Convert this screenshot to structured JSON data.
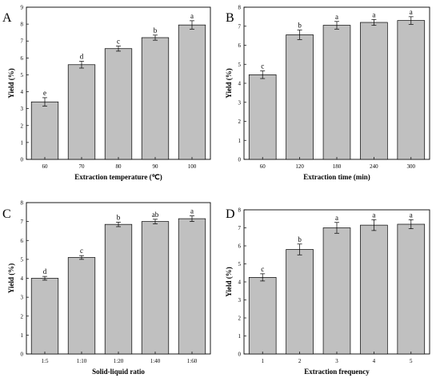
{
  "chart_data": [
    {
      "panel": "A",
      "type": "bar",
      "categories": [
        "60",
        "70",
        "80",
        "90",
        "100"
      ],
      "values": [
        3.4,
        5.6,
        6.55,
        7.2,
        7.95
      ],
      "errors": [
        0.25,
        0.2,
        0.15,
        0.15,
        0.25
      ],
      "significance": [
        "e",
        "d",
        "c",
        "b",
        "a"
      ],
      "xlabel": "Extraction temperature (℃)",
      "ylabel": "Yield (%)",
      "ylim": [
        0,
        9
      ],
      "yticks": [
        "0",
        "1",
        "2",
        "3",
        "4",
        "5",
        "6",
        "7",
        "8",
        "9"
      ],
      "grid": false
    },
    {
      "panel": "B",
      "type": "bar",
      "categories": [
        "60",
        "120",
        "180",
        "240",
        "300"
      ],
      "values": [
        4.45,
        6.55,
        7.05,
        7.2,
        7.3
      ],
      "errors": [
        0.2,
        0.25,
        0.2,
        0.15,
        0.2
      ],
      "significance": [
        "c",
        "b",
        "a",
        "a",
        "a"
      ],
      "xlabel": "Extraction time (min)",
      "ylabel": "Yield (%)",
      "ylim": [
        0,
        8
      ],
      "yticks": [
        "0",
        "1",
        "2",
        "3",
        "4",
        "5",
        "6",
        "7",
        "8"
      ],
      "grid": false
    },
    {
      "panel": "C",
      "type": "bar",
      "categories": [
        "1:5",
        "1:10",
        "1:20",
        "1:40",
        "1:60"
      ],
      "values": [
        4.0,
        5.1,
        6.85,
        7.0,
        7.15
      ],
      "errors": [
        0.1,
        0.1,
        0.12,
        0.12,
        0.15
      ],
      "significance": [
        "d",
        "c",
        "b",
        "ab",
        "a"
      ],
      "xlabel": "Solid-liquid ratio",
      "ylabel": "Yield (%)",
      "ylim": [
        0,
        8
      ],
      "yticks": [
        "0",
        "1",
        "2",
        "3",
        "4",
        "5",
        "6",
        "7",
        "8"
      ],
      "grid": false
    },
    {
      "panel": "D",
      "type": "bar",
      "categories": [
        "1",
        "2",
        "3",
        "4",
        "5"
      ],
      "values": [
        4.25,
        5.8,
        7.0,
        7.15,
        7.2
      ],
      "errors": [
        0.2,
        0.3,
        0.3,
        0.3,
        0.25
      ],
      "significance": [
        "c",
        "b",
        "a",
        "a",
        "a"
      ],
      "xlabel": "Extraction frequency",
      "ylabel": "Yield (%)",
      "ylim": [
        0,
        8
      ],
      "yticks": [
        "0",
        "1",
        "2",
        "3",
        "4",
        "5",
        "6",
        "7",
        "8"
      ],
      "grid": false
    }
  ]
}
